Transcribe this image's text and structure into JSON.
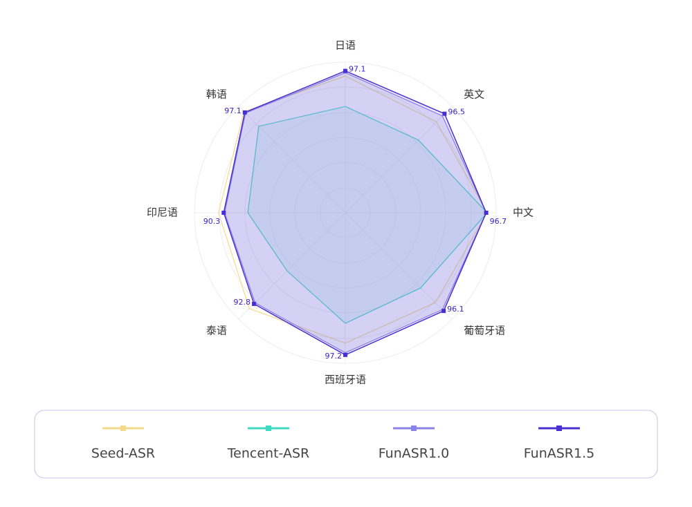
{
  "chart_data": {
    "type": "radar",
    "categories": [
      "日语",
      "英文",
      "中文",
      "葡萄牙语",
      "西班牙语",
      "泰语",
      "印尼语",
      "韩语"
    ],
    "ylim": [
      50,
      100
    ],
    "series": [
      {
        "name": "Seed-ASR",
        "color": "#f5d98a",
        "values": [
          95.4,
          92.7,
          97,
          92.2,
          93.3,
          95,
          92,
          97.5
        ]
      },
      {
        "name": "Tencent-ASR",
        "color": "#3fd9c0",
        "values": [
          85.3,
          84.2,
          97,
          85.3,
          86.7,
          77.3,
          82.3,
          90.6
        ]
      },
      {
        "name": "FunASR1.0",
        "color": "#8a82e6",
        "values": [
          96.5,
          95.5,
          96.7,
          95.5,
          96.5,
          92.3,
          90,
          96.8
        ]
      },
      {
        "name": "FunASR1.5",
        "color": "#4a2fd0",
        "values": [
          97.1,
          96.5,
          96.7,
          96.1,
          97.2,
          92.8,
          90.3,
          97.1
        ]
      }
    ]
  }
}
